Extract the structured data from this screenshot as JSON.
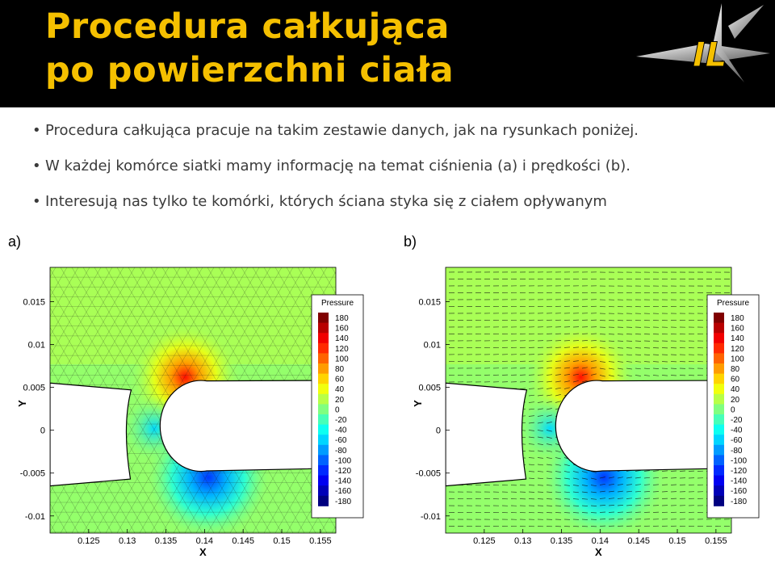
{
  "slide": {
    "title_line1": "Procedura całkująca",
    "title_line2": "po powierzchni ciała",
    "logo_text": "IL",
    "bullets": [
      "Procedura całkująca pracuje na takim zestawie danych, jak na rysunkach poniżej.",
      "W każdej komórce siatki mamy informację na temat ciśnienia (a) i prędkości (b).",
      "Interesują nas tylko te komórki, których ściana styka się z ciałem opływanym"
    ],
    "colors": {
      "header_bg": "#000000",
      "title": "#f5c000",
      "bullet_text": "#3a3a3a"
    }
  },
  "figures": {
    "a": {
      "tag": "a)",
      "overlay": "triangular-mesh"
    },
    "b": {
      "tag": "b)",
      "overlay": "velocity-vectors"
    }
  },
  "chart_data": [
    {
      "type": "heatmap",
      "panel": "a)",
      "xlabel": "X",
      "ylabel": "Y",
      "xlim": [
        0.12,
        0.157
      ],
      "ylim": [
        -0.012,
        0.019
      ],
      "x_ticks": [
        "0.125",
        "0.13",
        "0.135",
        "0.14",
        "0.145",
        "0.15",
        "0.155"
      ],
      "y_ticks": [
        "0.015",
        "0.01",
        "0.005",
        "0",
        "-0.005",
        "-0.01"
      ],
      "legend": {
        "title": "Pressure",
        "placement": "right",
        "levels": [
          "180",
          "160",
          "140",
          "120",
          "100",
          "80",
          "60",
          "40",
          "20",
          "0",
          "-20",
          "-40",
          "-60",
          "-80",
          "-100",
          "-120",
          "-140",
          "-160",
          "-180"
        ]
      },
      "grid": false
    },
    {
      "type": "heatmap",
      "panel": "b)",
      "xlabel": "X",
      "ylabel": "Y",
      "xlim": [
        0.12,
        0.157
      ],
      "ylim": [
        -0.012,
        0.019
      ],
      "x_ticks": [
        "0.125",
        "0.13",
        "0.135",
        "0.14",
        "0.145",
        "0.15",
        "0.155"
      ],
      "y_ticks": [
        "0.015",
        "0.01",
        "0.005",
        "0",
        "-0.005",
        "-0.01"
      ],
      "legend": {
        "title": "Pressure",
        "placement": "right",
        "levels": [
          "180",
          "160",
          "140",
          "120",
          "100",
          "80",
          "60",
          "40",
          "20",
          "0",
          "-20",
          "-40",
          "-60",
          "-80",
          "-100",
          "-120",
          "-140",
          "-160",
          "-180"
        ]
      },
      "grid": false
    }
  ]
}
